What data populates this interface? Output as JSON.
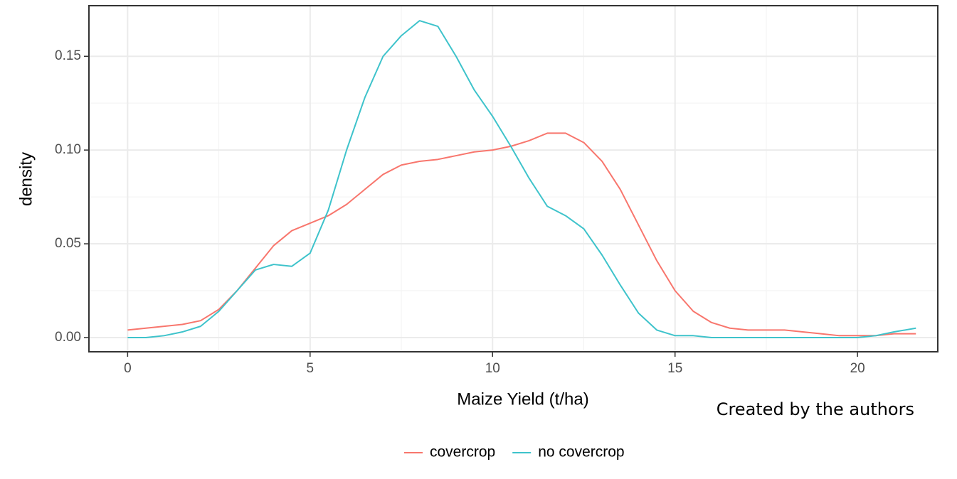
{
  "chart_data": {
    "type": "line",
    "xlabel": "Maize Yield (t/ha)",
    "ylabel": "density",
    "annotation": "Created by the authors",
    "x": [
      0,
      0.5,
      1,
      1.5,
      2,
      2.5,
      3,
      3.5,
      4,
      4.5,
      5,
      5.5,
      6,
      6.5,
      7,
      7.5,
      8,
      8.5,
      9,
      9.5,
      10,
      10.5,
      11,
      11.5,
      12,
      12.5,
      13,
      13.5,
      14,
      14.5,
      15,
      15.5,
      16,
      16.5,
      17,
      17.5,
      18,
      18.5,
      19,
      19.5,
      20,
      20.5,
      21,
      21.6
    ],
    "series": [
      {
        "name": "covercrop",
        "color": "#f8766d",
        "values": [
          0.004,
          0.005,
          0.006,
          0.007,
          0.009,
          0.015,
          0.025,
          0.037,
          0.049,
          0.057,
          0.061,
          0.065,
          0.071,
          0.079,
          0.087,
          0.092,
          0.094,
          0.095,
          0.097,
          0.099,
          0.1,
          0.102,
          0.105,
          0.109,
          0.109,
          0.104,
          0.094,
          0.079,
          0.06,
          0.041,
          0.025,
          0.014,
          0.008,
          0.005,
          0.004,
          0.004,
          0.004,
          0.003,
          0.002,
          0.001,
          0.001,
          0.001,
          0.002,
          0.002
        ]
      },
      {
        "name": "no covercrop",
        "color": "#3ec3cb",
        "values": [
          0,
          0,
          0.001,
          0.003,
          0.006,
          0.014,
          0.025,
          0.036,
          0.039,
          0.038,
          0.045,
          0.068,
          0.1,
          0.128,
          0.15,
          0.161,
          0.169,
          0.166,
          0.15,
          0.132,
          0.118,
          0.102,
          0.085,
          0.07,
          0.065,
          0.058,
          0.044,
          0.028,
          0.013,
          0.004,
          0.001,
          0.001,
          0,
          0,
          0,
          0,
          0,
          0,
          0,
          0,
          0,
          0.001,
          0.003,
          0.005
        ]
      }
    ],
    "xlim": [
      -1.06,
      22.2
    ],
    "xticks": [
      0,
      5,
      10,
      15,
      20
    ],
    "xminor": [
      2.5,
      7.5,
      12.5,
      17.5
    ],
    "ylim": [
      -0.0076,
      0.177
    ],
    "yticks": [
      {
        "value": 0,
        "label": "0.00"
      },
      {
        "value": 0.05,
        "label": "0.05"
      },
      {
        "value": 0.1,
        "label": "0.10"
      },
      {
        "value": 0.15,
        "label": "0.15"
      }
    ],
    "yminor": [
      0.025,
      0.075,
      0.125
    ],
    "grid": true,
    "legend": "bottom"
  }
}
